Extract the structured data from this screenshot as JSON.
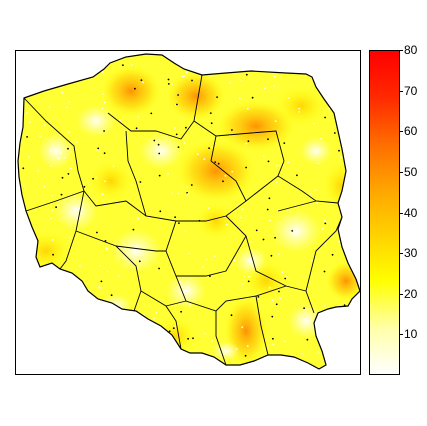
{
  "legend": {
    "range": [
      0,
      80
    ],
    "ticks": [
      "10",
      "20",
      "30",
      "40",
      "50",
      "60",
      "70",
      "80"
    ],
    "colors": [
      "#ffffff",
      "#ffffaa",
      "#ffff00",
      "#ffd200",
      "#ffa500",
      "#ff6e00",
      "#ff2800",
      "#ff0000"
    ]
  },
  "map": {
    "region": "Poland",
    "boundaries": "voivodeships"
  }
}
